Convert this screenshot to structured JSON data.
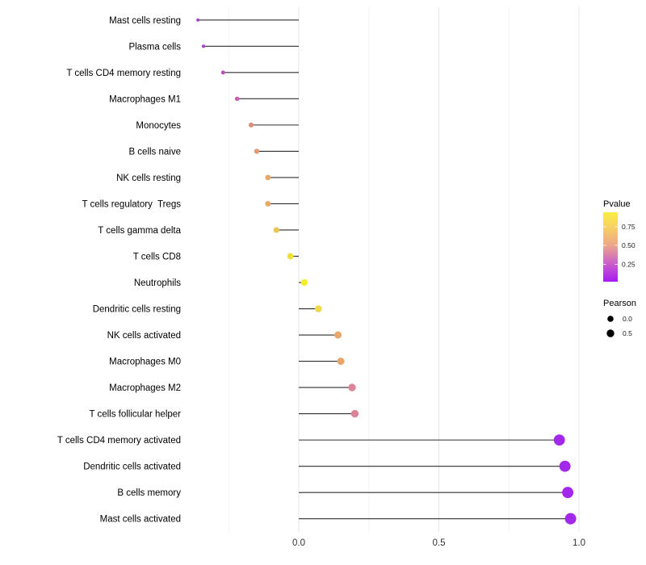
{
  "chart_data": {
    "type": "scatter",
    "variant": "lollipop",
    "title": "",
    "xlabel": "",
    "ylabel": "",
    "x_axis": {
      "ticks": [
        {
          "value": 0.0,
          "label": "0.0"
        },
        {
          "value": 0.5,
          "label": "0.5"
        },
        {
          "value": 1.0,
          "label": "1.0"
        }
      ],
      "minor_gridlines": [
        -0.25,
        0.25,
        0.75
      ],
      "range": [
        -0.42,
        1.04
      ],
      "grid": "vertical-only"
    },
    "points": [
      {
        "label": "Mast cells resting",
        "pearson": -0.36,
        "color": "#A43CD4"
      },
      {
        "label": "Plasma cells",
        "pearson": -0.34,
        "color": "#AE3FCA"
      },
      {
        "label": "T cells CD4 memory resting",
        "pearson": -0.27,
        "color": "#BD4EC0"
      },
      {
        "label": "Macrophages M1",
        "pearson": -0.22,
        "color": "#C961AE"
      },
      {
        "label": "Monocytes",
        "pearson": -0.17,
        "color": "#DC8F7B"
      },
      {
        "label": "B cells naive",
        "pearson": -0.15,
        "color": "#E39A72"
      },
      {
        "label": "NK cells resting",
        "pearson": -0.11,
        "color": "#E7A967"
      },
      {
        "label": "T cells regulatory  Tregs",
        "pearson": -0.11,
        "color": "#E7A967"
      },
      {
        "label": "T cells gamma delta",
        "pearson": -0.08,
        "color": "#ECC553"
      },
      {
        "label": "T cells CD8",
        "pearson": -0.03,
        "color": "#F0E03C"
      },
      {
        "label": "Neutrophils",
        "pearson": 0.02,
        "color": "#F4ED2D"
      },
      {
        "label": "Dendritic cells resting",
        "pearson": 0.07,
        "color": "#F0D94A"
      },
      {
        "label": "NK cells activated",
        "pearson": 0.14,
        "color": "#E7A76C"
      },
      {
        "label": "Macrophages M0",
        "pearson": 0.15,
        "color": "#E7A76C"
      },
      {
        "label": "Macrophages M2",
        "pearson": 0.19,
        "color": "#DC8495"
      },
      {
        "label": "T cells follicular helper",
        "pearson": 0.2,
        "color": "#DA8399"
      },
      {
        "label": "T cells CD4 memory activated",
        "pearson": 0.93,
        "color": "#A228EA"
      },
      {
        "label": "Dendritic cells activated",
        "pearson": 0.95,
        "color": "#A228EA"
      },
      {
        "label": "B cells memory",
        "pearson": 0.96,
        "color": "#A228EA"
      },
      {
        "label": "Mast cells activated",
        "pearson": 0.97,
        "color": "#A228EA"
      }
    ],
    "legend_pvalue": {
      "title": "Pvalue",
      "ticks": [
        "0.75",
        "0.50",
        "0.25"
      ],
      "gradient_top_to_bottom": [
        "#FBEC45",
        "#F6D163",
        "#EDA78A",
        "#CC5ECA",
        "#A51BF2"
      ]
    },
    "legend_pearson": {
      "title": "Pearson",
      "items": [
        {
          "label": "0.0"
        },
        {
          "label": "0.5"
        }
      ]
    },
    "colors": {
      "stem": "#2E2E2E",
      "axis_text": "#333333",
      "label_text": "#000000",
      "major_gridline": "#E7E7E7",
      "minor_gridline": "#F3F3F3",
      "legend_dot": "#000000"
    }
  }
}
